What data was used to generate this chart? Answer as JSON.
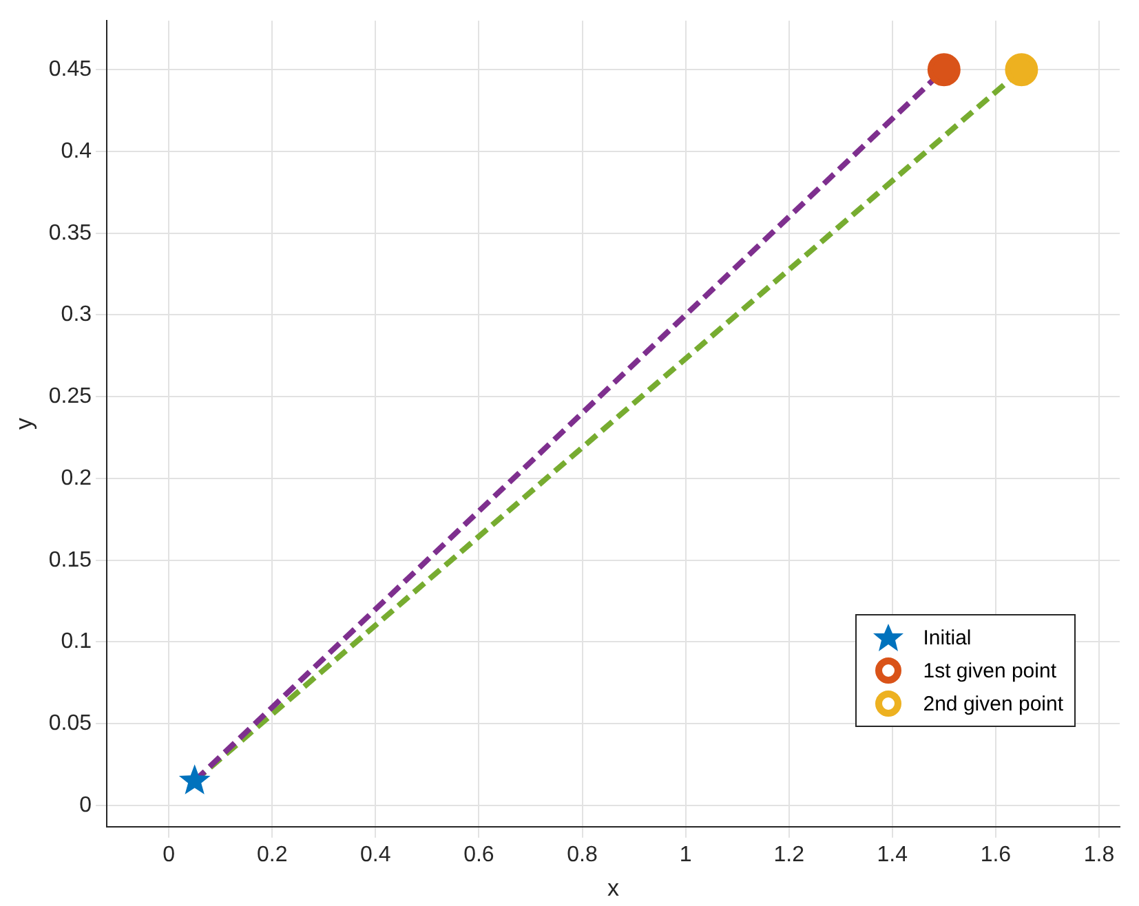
{
  "chart_data": {
    "type": "scatter",
    "xlabel": "x",
    "ylabel": "y",
    "xlim": [
      -0.12,
      1.84
    ],
    "ylim": [
      -0.013,
      0.48
    ],
    "xticks": [
      0,
      0.2,
      0.4,
      0.6,
      0.8,
      1,
      1.2,
      1.4,
      1.6,
      1.8
    ],
    "yticks": [
      0,
      0.05,
      0.1,
      0.15,
      0.2,
      0.25,
      0.3,
      0.35,
      0.4,
      0.45
    ],
    "grid": true,
    "legend": "bottom right",
    "series": [
      {
        "type": "line",
        "line_style": "dashed",
        "marker": "none",
        "color": "#7e2f8e",
        "x": [
          0.05,
          1.5
        ],
        "values": [
          0.015,
          0.45
        ]
      },
      {
        "type": "line",
        "line_style": "dashed",
        "marker": "none",
        "color": "#77ac30",
        "x": [
          0.05,
          1.65
        ],
        "values": [
          0.015,
          0.45
        ]
      },
      {
        "name": "Initial",
        "type": "scatter",
        "marker": "star",
        "color": "#0072bd",
        "x": [
          0.05
        ],
        "values": [
          0.015
        ]
      },
      {
        "name": "1st given point",
        "type": "scatter",
        "marker": "circle",
        "color": "#d95319",
        "x": [
          1.5
        ],
        "values": [
          0.45
        ]
      },
      {
        "name": "2nd given point",
        "type": "scatter",
        "marker": "circle",
        "color": "#edb120",
        "x": [
          1.65
        ],
        "values": [
          0.45
        ]
      }
    ]
  }
}
